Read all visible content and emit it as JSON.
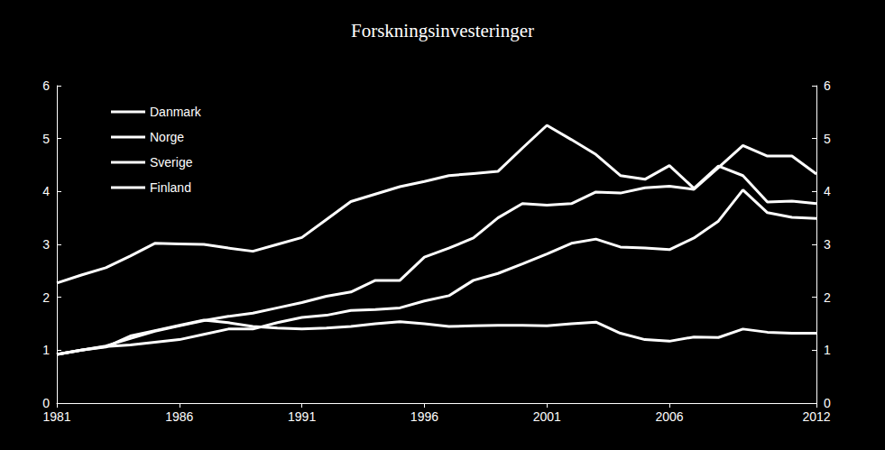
{
  "chart_data": {
    "type": "line",
    "title": "Forskningsinvesteringer",
    "x": [
      1981,
      1982,
      1983,
      1984,
      1985,
      1986,
      1987,
      1988,
      1989,
      1990,
      1991,
      1992,
      1993,
      1994,
      1995,
      1996,
      1997,
      1998,
      1999,
      2000,
      2001,
      2002,
      2003,
      2004,
      2005,
      2006,
      2007,
      2008,
      2009,
      2010,
      2011,
      2012
    ],
    "xlim": [
      1981,
      2012
    ],
    "xticks": [
      1981,
      1986,
      1991,
      1996,
      2001,
      2006,
      2012
    ],
    "ylim": [
      0,
      6
    ],
    "yticks": [
      0,
      1,
      2,
      3,
      4,
      5,
      6
    ],
    "y2lim": [
      0,
      6
    ],
    "y2ticks": [
      0,
      1,
      2,
      3,
      4,
      5,
      6
    ],
    "grid": false,
    "legend": "upper left",
    "series": [
      {
        "name": "Danmark",
        "color": "#ffffff",
        "values": [
          0.92,
          1.0,
          1.07,
          1.1,
          1.15,
          1.2,
          1.3,
          1.4,
          1.4,
          1.52,
          1.62,
          1.66,
          1.75,
          1.77,
          1.8,
          1.93,
          2.03,
          2.32,
          2.45,
          2.63,
          2.82,
          3.02,
          3.1,
          2.95,
          2.93,
          2.9,
          3.12,
          3.44,
          4.03,
          3.6,
          3.51,
          3.49
        ]
      },
      {
        "name": "Norge",
        "color": "#ffffff",
        "values": [
          0.92,
          1.0,
          1.06,
          1.27,
          1.37,
          1.47,
          1.57,
          1.52,
          1.45,
          1.42,
          1.4,
          1.42,
          1.45,
          1.5,
          1.54,
          1.5,
          1.45,
          1.46,
          1.47,
          1.47,
          1.46,
          1.5,
          1.53,
          1.32,
          1.2,
          1.17,
          1.25,
          1.24,
          1.4,
          1.34,
          1.32,
          1.32
        ]
      },
      {
        "name": "Sverige",
        "color": "#ffffff",
        "values": [
          2.27,
          2.42,
          2.56,
          2.78,
          3.02,
          3.01,
          3.0,
          2.93,
          2.87,
          3.0,
          3.13,
          3.47,
          3.81,
          3.95,
          4.09,
          4.19,
          4.3,
          4.34,
          4.38,
          4.82,
          5.25,
          4.98,
          4.7,
          4.3,
          4.23,
          4.49,
          4.06,
          4.48,
          4.3,
          3.8,
          3.82,
          3.77
        ]
      },
      {
        "name": "Finland",
        "color": "#ffffff",
        "values": [
          0.92,
          1.0,
          1.08,
          1.22,
          1.36,
          1.46,
          1.56,
          1.64,
          1.7,
          1.8,
          1.9,
          2.02,
          2.1,
          2.32,
          2.32,
          2.76,
          2.93,
          3.12,
          3.5,
          3.77,
          3.74,
          3.77,
          3.99,
          3.97,
          4.07,
          4.1,
          4.04,
          4.45,
          4.87,
          4.67,
          4.67,
          4.33
        ]
      }
    ]
  }
}
